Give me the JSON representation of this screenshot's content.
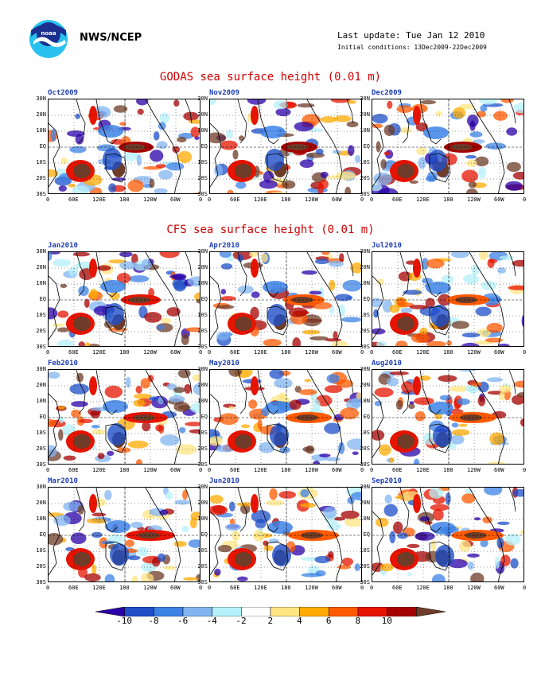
{
  "header": {
    "org": "NWS/NCEP",
    "last_update": "Last update: Tue Jan 12 2010",
    "initial_conditions": "Initial conditions: 13Dec2009-22Dec2009",
    "logo_icon": "noaa-logo-icon"
  },
  "sections": {
    "godas_title": "GODAS sea surface height (0.01 m)",
    "cfs_title": "CFS sea surface height (0.01 m)"
  },
  "axes": {
    "y_ticks": [
      "30N",
      "20N",
      "10N",
      "EQ",
      "10S",
      "20S",
      "30S"
    ],
    "x_ticks": [
      "0",
      "60E",
      "120E",
      "180",
      "120W",
      "60W",
      "0"
    ]
  },
  "panels": {
    "godas": [
      "Oct2009",
      "Nov2009",
      "Dec2009"
    ],
    "cfs": [
      "Jan2010",
      "Apr2010",
      "Jul2010",
      "Feb2010",
      "May2010",
      "Aug2010",
      "Mar2010",
      "Jun2010",
      "Sep2010"
    ]
  },
  "colorbar": {
    "labels": [
      "-10",
      "-8",
      "-6",
      "-4",
      "-2",
      "2",
      "4",
      "6",
      "8",
      "10"
    ],
    "colors": [
      "#2a00a8",
      "#1e4fc8",
      "#3c82e6",
      "#82b4f0",
      "#b4f0fa",
      "#ffffff",
      "#ffe682",
      "#ffaa00",
      "#ff5a00",
      "#e61400",
      "#a50000",
      "#6e3c28"
    ]
  }
}
